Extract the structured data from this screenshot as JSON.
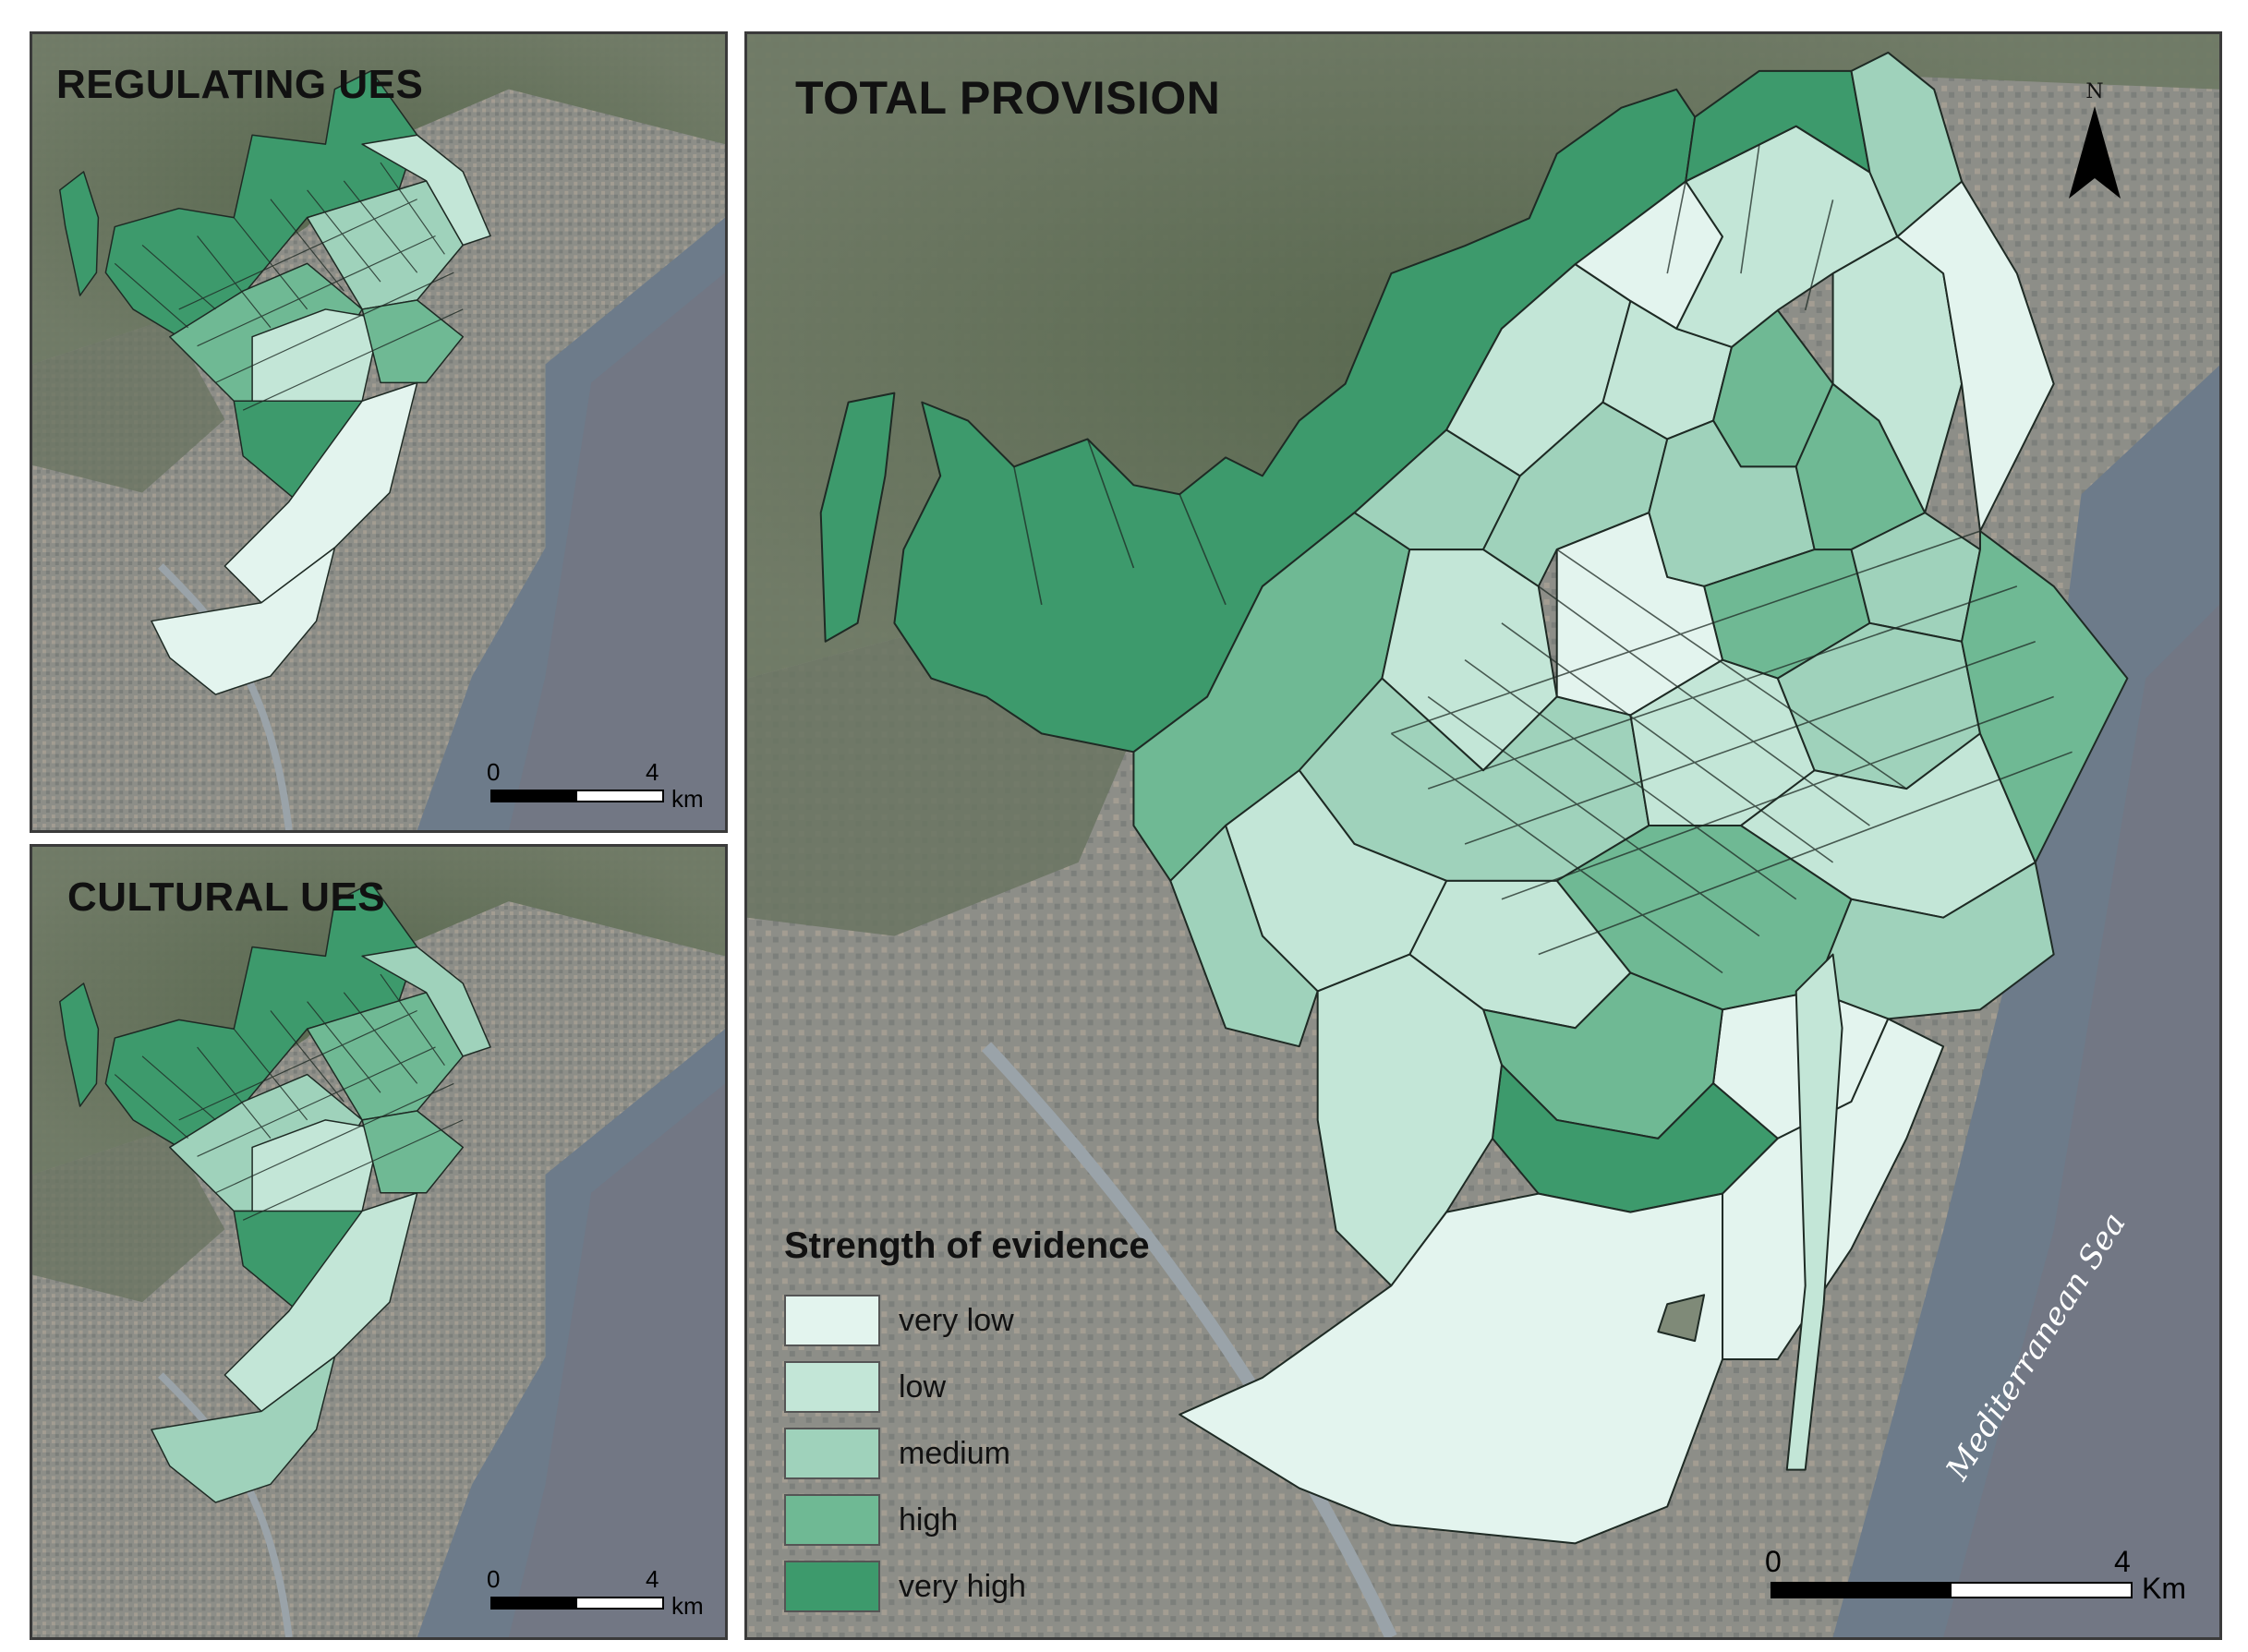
{
  "panels": {
    "regulating": {
      "title": "REGULATING UES"
    },
    "cultural": {
      "title": "CULTURAL UES"
    },
    "total": {
      "title": "TOTAL PROVISION"
    }
  },
  "scale_small": {
    "zero": "0",
    "max": "4",
    "unit": "km"
  },
  "scale_big": {
    "zero": "0",
    "max": "4",
    "unit": "Km"
  },
  "north_label": "N",
  "sea_label": "Mediterranean Sea",
  "legend": {
    "title": "Strength of evidence",
    "classes": [
      {
        "label": "very low",
        "color": "#e3f4ee"
      },
      {
        "label": "low",
        "color": "#c3e6d7"
      },
      {
        "label": "medium",
        "color": "#9fd2bb"
      },
      {
        "label": "high",
        "color": "#6fb994"
      },
      {
        "label": "very high",
        "color": "#3d9a6c"
      }
    ]
  },
  "colors": {
    "imagery_land": "#7f8a78",
    "imagery_urban": "#8e8f88",
    "imagery_mountain": "#5f6e55",
    "sea": "#6c7a88",
    "boundary": "#1e2a24"
  }
}
